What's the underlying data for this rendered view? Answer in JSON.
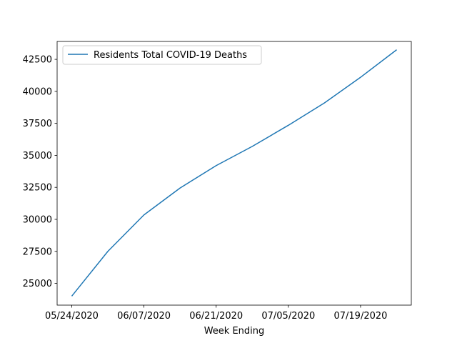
{
  "chart_data": {
    "type": "line",
    "title": "",
    "xlabel": "Week Ending",
    "ylabel": "",
    "x": [
      "05/24/2020",
      "05/31/2020",
      "06/07/2020",
      "06/14/2020",
      "06/21/2020",
      "06/28/2020",
      "07/05/2020",
      "07/12/2020",
      "07/19/2020",
      "07/26/2020"
    ],
    "x_tick_labels": [
      "05/24/2020",
      "06/07/2020",
      "06/21/2020",
      "07/05/2020",
      "07/19/2020"
    ],
    "ylim": [
      23300,
      43900
    ],
    "y_ticks": [
      25000,
      27500,
      30000,
      32500,
      35000,
      37500,
      40000,
      42500
    ],
    "y_tick_labels": [
      "25000",
      "27500",
      "30000",
      "32500",
      "35000",
      "37500",
      "40000",
      "42500"
    ],
    "series": [
      {
        "name": "Residents Total COVID-19 Deaths",
        "color": "#1f77b4",
        "values": [
          24000,
          27500,
          30350,
          32450,
          34200,
          35700,
          37350,
          39100,
          41100,
          43250
        ]
      }
    ],
    "legend": "top-left",
    "grid": false
  }
}
